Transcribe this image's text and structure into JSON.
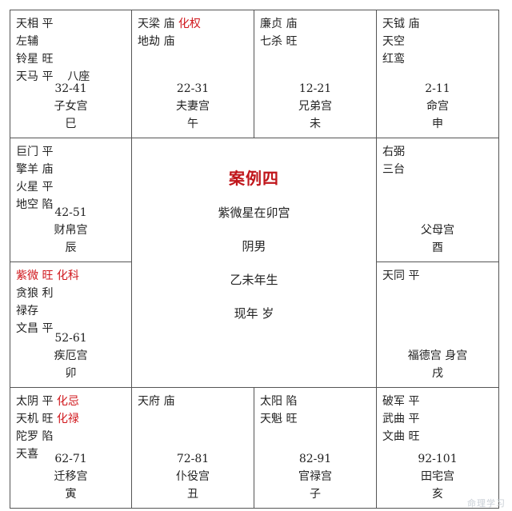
{
  "title": "案例四",
  "center_info": [
    "紫微星在卯宫",
    "阴男",
    "乙未年生",
    "现年 岁"
  ],
  "palaces": {
    "si": {
      "stars": [
        [
          "天相 平"
        ],
        [
          "左辅"
        ],
        [
          "铃星 旺"
        ],
        [
          "天马 平",
          "八座"
        ]
      ],
      "age": "32-41",
      "name": "子女宫",
      "branch": "巳"
    },
    "wu": {
      "stars": [
        [
          "天梁 庙 ",
          {
            "t": "化权",
            "red": true
          }
        ],
        [
          "地劫 庙"
        ]
      ],
      "age": "22-31",
      "name": "夫妻宫",
      "branch": "午"
    },
    "wei": {
      "stars": [
        [
          "廉贞 庙"
        ],
        [
          "七杀 旺"
        ]
      ],
      "age": "12-21",
      "name": "兄弟宫",
      "branch": "未"
    },
    "shen": {
      "stars": [
        [
          "天钺 庙"
        ],
        [
          "天空"
        ],
        [
          "红鸾"
        ]
      ],
      "age": "2-11",
      "name": "命宫",
      "branch": "申"
    },
    "chen": {
      "stars": [
        [
          "巨门 平"
        ],
        [
          "擎羊 庙"
        ],
        [
          "火星 平"
        ],
        [
          "地空 陷"
        ]
      ],
      "age": "42-51",
      "name": "财帛宫",
      "branch": "辰"
    },
    "you": {
      "stars": [
        [
          "右弼"
        ],
        [
          "三台"
        ]
      ],
      "age": "",
      "name": "父母宫",
      "branch": "酉"
    },
    "mao": {
      "stars": [
        [
          {
            "t": "紫微 旺 化科",
            "red": true
          }
        ],
        [
          "贪狼 利"
        ],
        [
          "禄存"
        ],
        [
          "文昌 平"
        ]
      ],
      "age": "52-61",
      "name": "疾厄宫",
      "branch": "卯"
    },
    "xu": {
      "stars": [
        [
          "天同 平"
        ]
      ],
      "age": "",
      "name": "福德宫 身宫",
      "branch": "戌"
    },
    "yin": {
      "stars": [
        [
          "太阴 平 ",
          {
            "t": "化忌",
            "red": true
          }
        ],
        [
          "天机 旺 ",
          {
            "t": "化禄",
            "red": true
          }
        ],
        [
          "陀罗 陷"
        ],
        [
          "天喜"
        ]
      ],
      "age": "62-71",
      "name": "迁移宫",
      "branch": "寅"
    },
    "chou": {
      "stars": [
        [
          "天府 庙"
        ]
      ],
      "age": "72-81",
      "name": "仆役宫",
      "branch": "丑"
    },
    "zi": {
      "stars": [
        [
          "太阳 陷"
        ],
        [
          "天魁 旺"
        ]
      ],
      "age": "82-91",
      "name": "官禄宫",
      "branch": "子"
    },
    "hai": {
      "stars": [
        [
          "破军 平"
        ],
        [
          "武曲 平"
        ],
        [
          "文曲 旺"
        ]
      ],
      "age": "92-101",
      "name": "田宅宫",
      "branch": "亥"
    }
  },
  "watermark": "命理学习"
}
